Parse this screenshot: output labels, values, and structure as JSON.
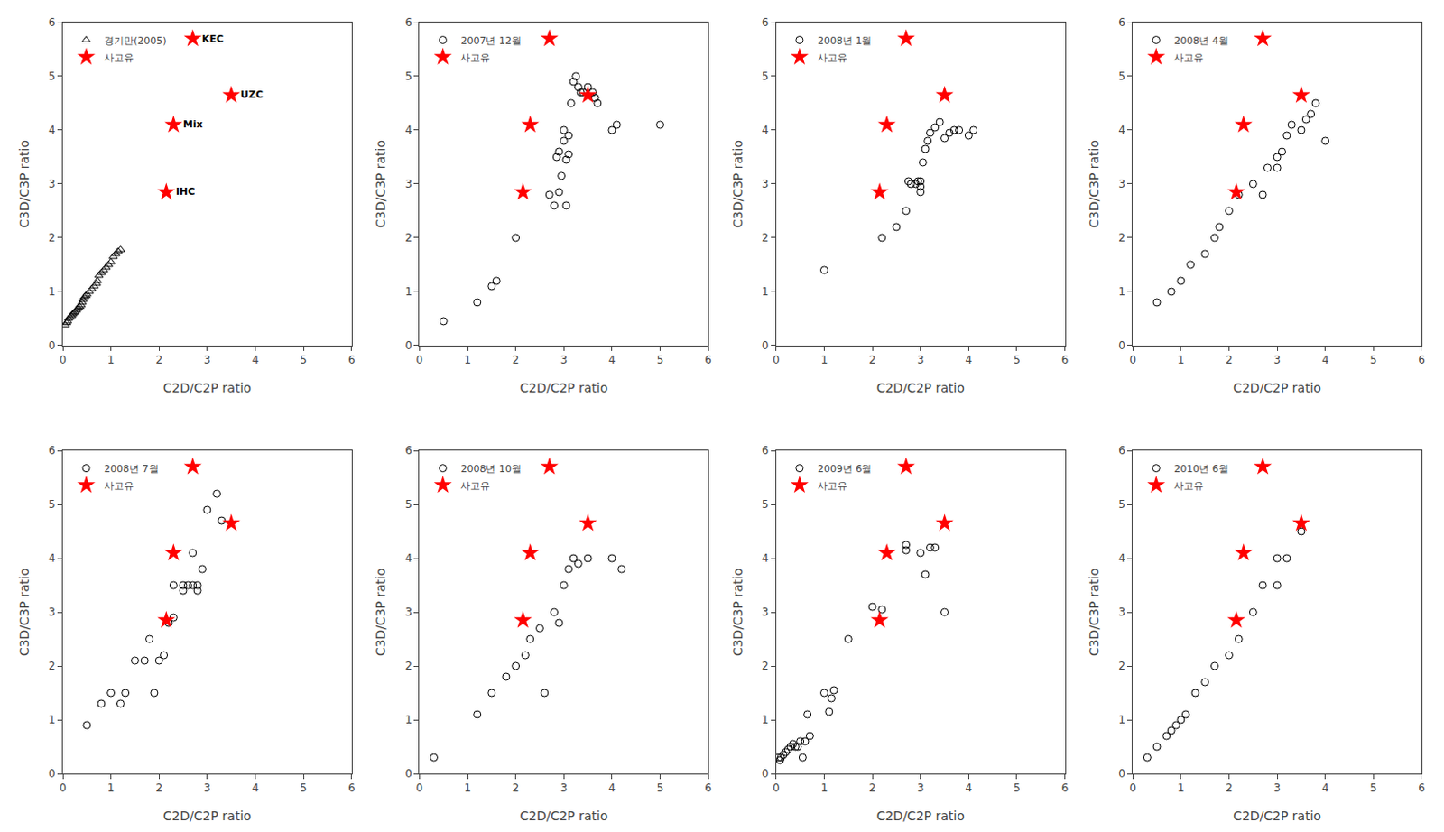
{
  "chart_data": [
    {
      "type": "scatter",
      "xlabel": "C2D/C2P ratio",
      "ylabel": "C3D/C3P ratio",
      "xlim": [
        0,
        6
      ],
      "ylim": [
        0,
        6
      ],
      "xticks": [
        0,
        1,
        2,
        3,
        4,
        5,
        6
      ],
      "yticks": [
        0,
        1,
        2,
        3,
        4,
        5,
        6
      ],
      "grid": false,
      "legend": "upper left",
      "series": [
        {
          "name": "경기만(2005)",
          "color": "black",
          "marker": "triangle",
          "x": [
            0.05,
            0.08,
            0.1,
            0.12,
            0.15,
            0.18,
            0.2,
            0.22,
            0.25,
            0.28,
            0.3,
            0.32,
            0.35,
            0.38,
            0.4,
            0.42,
            0.45,
            0.48,
            0.5,
            0.55,
            0.6,
            0.65,
            0.7,
            0.72,
            0.75,
            0.8,
            0.85,
            0.9,
            0.95,
            1.0,
            1.05,
            1.1,
            1.15,
            1.2
          ],
          "y": [
            0.38,
            0.42,
            0.45,
            0.5,
            0.52,
            0.55,
            0.58,
            0.6,
            0.62,
            0.65,
            0.68,
            0.7,
            0.72,
            0.75,
            0.8,
            0.85,
            0.9,
            0.92,
            0.95,
            1.0,
            1.05,
            1.1,
            1.15,
            1.2,
            1.3,
            1.35,
            1.4,
            1.45,
            1.5,
            1.55,
            1.65,
            1.7,
            1.75,
            1.78
          ]
        },
        {
          "name": "사고유",
          "color": "red",
          "marker": "star",
          "x": [
            2.7,
            3.5,
            2.3,
            2.15
          ],
          "y": [
            5.7,
            4.65,
            4.1,
            2.85
          ]
        }
      ],
      "annotations": [
        {
          "text": "KEC",
          "x": 2.75,
          "y": 5.7
        },
        {
          "text": "UZC",
          "x": 3.55,
          "y": 4.65
        },
        {
          "text": "Mix",
          "x": 2.35,
          "y": 4.1
        },
        {
          "text": "IHC",
          "x": 2.2,
          "y": 2.85
        }
      ]
    },
    {
      "type": "scatter",
      "xlabel": "C2D/C2P ratio",
      "ylabel": "C3D/C3P ratio",
      "xlim": [
        0,
        6
      ],
      "ylim": [
        0,
        6
      ],
      "xticks": [
        0,
        1,
        2,
        3,
        4,
        5,
        6
      ],
      "yticks": [
        0,
        1,
        2,
        3,
        4,
        5,
        6
      ],
      "grid": false,
      "legend": "upper left",
      "series": [
        {
          "name": "2007년 12월",
          "color": "black",
          "marker": "circle",
          "x": [
            0.5,
            1.2,
            1.5,
            1.6,
            2.0,
            2.7,
            2.8,
            2.85,
            2.9,
            2.9,
            2.95,
            3.0,
            3.0,
            3.05,
            3.05,
            3.1,
            3.1,
            3.15,
            3.2,
            3.25,
            3.3,
            3.35,
            3.4,
            3.5,
            3.6,
            3.65,
            3.7,
            4.0,
            4.1,
            5.0
          ],
          "y": [
            0.45,
            0.8,
            1.1,
            1.2,
            2.0,
            2.8,
            2.6,
            3.5,
            3.6,
            2.85,
            3.15,
            3.8,
            4.0,
            3.45,
            2.6,
            3.55,
            3.9,
            4.5,
            4.9,
            5.0,
            4.8,
            4.7,
            4.7,
            4.8,
            4.7,
            4.6,
            4.5,
            4.0,
            4.1,
            4.1
          ]
        },
        {
          "name": "사고유",
          "color": "red",
          "marker": "star",
          "x": [
            2.7,
            3.5,
            2.3,
            2.15
          ],
          "y": [
            5.7,
            4.65,
            4.1,
            2.85
          ]
        }
      ]
    },
    {
      "type": "scatter",
      "xlabel": "C2D/C2P ratio",
      "ylabel": "C3D/C3P ratio",
      "xlim": [
        0,
        6
      ],
      "ylim": [
        0,
        6
      ],
      "xticks": [
        0,
        1,
        2,
        3,
        4,
        5,
        6
      ],
      "yticks": [
        0,
        1,
        2,
        3,
        4,
        5,
        6
      ],
      "grid": false,
      "legend": "upper left",
      "series": [
        {
          "name": "2008년 1월",
          "color": "black",
          "marker": "circle",
          "x": [
            1.0,
            2.2,
            2.5,
            2.7,
            2.75,
            2.8,
            2.9,
            2.95,
            3.0,
            3.0,
            3.0,
            3.05,
            3.1,
            3.15,
            3.2,
            3.3,
            3.4,
            3.5,
            3.6,
            3.7,
            3.8,
            4.0,
            4.1
          ],
          "y": [
            1.4,
            2.0,
            2.2,
            2.5,
            3.05,
            3.0,
            3.0,
            3.05,
            3.05,
            2.85,
            2.95,
            3.4,
            3.65,
            3.8,
            3.95,
            4.05,
            4.15,
            3.85,
            3.95,
            4.0,
            4.0,
            3.9,
            4.0
          ]
        },
        {
          "name": "사고유",
          "color": "red",
          "marker": "star",
          "x": [
            2.7,
            3.5,
            2.3,
            2.15
          ],
          "y": [
            5.7,
            4.65,
            4.1,
            2.85
          ]
        }
      ]
    },
    {
      "type": "scatter",
      "xlabel": "C2D/C2P ratio",
      "ylabel": "C3D/C3P ratio",
      "xlim": [
        0,
        6
      ],
      "ylim": [
        0,
        6
      ],
      "xticks": [
        0,
        1,
        2,
        3,
        4,
        5,
        6
      ],
      "yticks": [
        0,
        1,
        2,
        3,
        4,
        5,
        6
      ],
      "grid": false,
      "legend": "upper left",
      "series": [
        {
          "name": "2008년 4월",
          "color": "black",
          "marker": "circle",
          "x": [
            0.5,
            0.8,
            1.0,
            1.2,
            1.5,
            1.7,
            1.8,
            2.0,
            2.2,
            2.5,
            2.7,
            2.8,
            3.0,
            3.0,
            3.1,
            3.2,
            3.3,
            3.5,
            3.6,
            3.7,
            3.8,
            4.0
          ],
          "y": [
            0.8,
            1.0,
            1.2,
            1.5,
            1.7,
            2.0,
            2.2,
            2.5,
            2.8,
            3.0,
            2.8,
            3.3,
            3.3,
            3.5,
            3.6,
            3.9,
            4.1,
            4.0,
            4.2,
            4.3,
            4.5,
            3.8
          ]
        },
        {
          "name": "사고유",
          "color": "red",
          "marker": "star",
          "x": [
            2.7,
            3.5,
            2.3,
            2.15
          ],
          "y": [
            5.7,
            4.65,
            4.1,
            2.85
          ]
        }
      ]
    },
    {
      "type": "scatter",
      "xlabel": "C2D/C2P ratio",
      "ylabel": "C3D/C3P ratio",
      "xlim": [
        0,
        6
      ],
      "ylim": [
        0,
        6
      ],
      "xticks": [
        0,
        1,
        2,
        3,
        4,
        5,
        6
      ],
      "yticks": [
        0,
        1,
        2,
        3,
        4,
        5,
        6
      ],
      "grid": false,
      "legend": "upper left",
      "series": [
        {
          "name": "2008년 7월",
          "color": "black",
          "marker": "circle",
          "x": [
            0.5,
            0.8,
            1.0,
            1.2,
            1.3,
            1.5,
            1.7,
            1.8,
            1.9,
            2.0,
            2.1,
            2.2,
            2.3,
            2.3,
            2.5,
            2.5,
            2.6,
            2.7,
            2.7,
            2.8,
            2.8,
            2.9,
            3.0,
            3.2,
            3.3
          ],
          "y": [
            0.9,
            1.3,
            1.5,
            1.3,
            1.5,
            2.1,
            2.1,
            2.5,
            1.5,
            2.1,
            2.2,
            2.8,
            2.9,
            3.5,
            3.5,
            3.4,
            3.5,
            3.5,
            4.1,
            3.5,
            3.4,
            3.8,
            4.9,
            5.2,
            4.7
          ]
        },
        {
          "name": "사고유",
          "color": "red",
          "marker": "star",
          "x": [
            2.7,
            3.5,
            2.3,
            2.15
          ],
          "y": [
            5.7,
            4.65,
            4.1,
            2.85
          ]
        }
      ]
    },
    {
      "type": "scatter",
      "xlabel": "C2D/C2P ratio",
      "ylabel": "C3D/C3P ratio",
      "xlim": [
        0,
        6
      ],
      "ylim": [
        0,
        6
      ],
      "xticks": [
        0,
        1,
        2,
        3,
        4,
        5,
        6
      ],
      "yticks": [
        0,
        1,
        2,
        3,
        4,
        5,
        6
      ],
      "grid": false,
      "legend": "upper left",
      "series": [
        {
          "name": "2008년 10월",
          "color": "black",
          "marker": "circle",
          "x": [
            0.3,
            1.2,
            1.5,
            1.8,
            2.0,
            2.2,
            2.3,
            2.5,
            2.6,
            2.8,
            2.9,
            3.0,
            3.1,
            3.2,
            3.3,
            3.5,
            4.0,
            4.2
          ],
          "y": [
            0.3,
            1.1,
            1.5,
            1.8,
            2.0,
            2.2,
            2.5,
            2.7,
            1.5,
            3.0,
            2.8,
            3.5,
            3.8,
            4.0,
            3.9,
            4.0,
            4.0,
            3.8
          ]
        },
        {
          "name": "사고유",
          "color": "red",
          "marker": "star",
          "x": [
            2.7,
            3.5,
            2.3,
            2.15
          ],
          "y": [
            5.7,
            4.65,
            4.1,
            2.85
          ]
        }
      ]
    },
    {
      "type": "scatter",
      "xlabel": "C2D/C2P ratio",
      "ylabel": "C3D/C3P ratio",
      "xlim": [
        0,
        6
      ],
      "ylim": [
        0,
        6
      ],
      "xticks": [
        0,
        1,
        2,
        3,
        4,
        5,
        6
      ],
      "yticks": [
        0,
        1,
        2,
        3,
        4,
        5,
        6
      ],
      "grid": false,
      "legend": "upper left",
      "series": [
        {
          "name": "2009년 6월",
          "color": "black",
          "marker": "circle",
          "x": [
            0.05,
            0.08,
            0.1,
            0.15,
            0.2,
            0.25,
            0.3,
            0.35,
            0.4,
            0.45,
            0.5,
            0.55,
            0.6,
            0.65,
            0.7,
            1.0,
            1.1,
            1.15,
            1.2,
            1.5,
            2.0,
            2.2,
            2.7,
            2.7,
            3.0,
            3.1,
            3.2,
            3.3,
            3.5
          ],
          "y": [
            0.3,
            0.25,
            0.3,
            0.35,
            0.4,
            0.45,
            0.5,
            0.55,
            0.5,
            0.5,
            0.6,
            0.3,
            0.6,
            1.1,
            0.7,
            1.5,
            1.15,
            1.4,
            1.55,
            2.5,
            3.1,
            3.05,
            4.15,
            4.25,
            4.1,
            3.7,
            4.2,
            4.2,
            3.0
          ]
        },
        {
          "name": "사고유",
          "color": "red",
          "marker": "star",
          "x": [
            2.7,
            3.5,
            2.3,
            2.15
          ],
          "y": [
            5.7,
            4.65,
            4.1,
            2.85
          ]
        }
      ]
    },
    {
      "type": "scatter",
      "xlabel": "C2D/C2P ratio",
      "ylabel": "C3D/C3P ratio",
      "xlim": [
        0,
        6
      ],
      "ylim": [
        0,
        6
      ],
      "xticks": [
        0,
        1,
        2,
        3,
        4,
        5,
        6
      ],
      "yticks": [
        0,
        1,
        2,
        3,
        4,
        5,
        6
      ],
      "grid": false,
      "legend": "upper left",
      "series": [
        {
          "name": "2010년 6월",
          "color": "black",
          "marker": "circle",
          "x": [
            0.3,
            0.5,
            0.7,
            0.8,
            0.9,
            1.0,
            1.1,
            1.3,
            1.5,
            1.7,
            2.0,
            2.2,
            2.5,
            2.7,
            3.0,
            3.0,
            3.2,
            3.5
          ],
          "y": [
            0.3,
            0.5,
            0.7,
            0.8,
            0.9,
            1.0,
            1.1,
            1.5,
            1.7,
            2.0,
            2.2,
            2.5,
            3.0,
            3.5,
            3.5,
            4.0,
            4.0,
            4.5
          ]
        },
        {
          "name": "사고유",
          "color": "red",
          "marker": "star",
          "x": [
            2.7,
            3.5,
            2.3,
            2.15
          ],
          "y": [
            5.7,
            4.65,
            4.1,
            2.85
          ]
        }
      ]
    }
  ]
}
